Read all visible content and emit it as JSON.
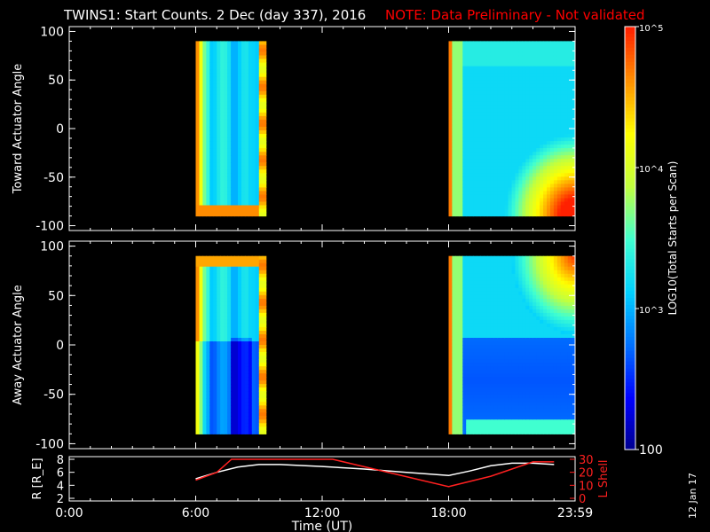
{
  "header": {
    "title": "TWINS1: Start Counts.  2 Dec (day 337), 2016",
    "note": "NOTE: Data Preliminary - Not validated"
  },
  "footer": {
    "date_stamp": "12 Jan 17"
  },
  "colors": {
    "background": "#000000",
    "axes": "#ffffff",
    "note": "#ff0000",
    "r_line": "#ffffff",
    "l_line": "#ff2020"
  },
  "colorbar": {
    "label": "LOG10(Total Starts per Scan)",
    "scale": "log",
    "range": [
      100,
      100000
    ],
    "ticks": [
      {
        "value": 100000,
        "label": "10^5"
      },
      {
        "value": 10000,
        "label": "10^4"
      },
      {
        "value": 1000,
        "label": "10^3"
      },
      {
        "value": 100,
        "label": "100"
      }
    ],
    "colormap": [
      "#00008b",
      "#0000ff",
      "#0070ff",
      "#00d0ff",
      "#40ffd0",
      "#c0ff40",
      "#ffff00",
      "#ff9000",
      "#ff2000"
    ]
  },
  "chart_data": [
    {
      "type": "heatmap",
      "panel": "toward",
      "ylabel": "Toward Actuator Angle",
      "xlim": [
        "00:00",
        "23:59"
      ],
      "ylim": [
        -105,
        105
      ],
      "yticks": [
        100,
        50,
        0,
        -50,
        -100
      ],
      "data_intervals": [
        {
          "start": "06:00",
          "end": "09:20",
          "count_level": "low-mid (~10^3)",
          "edge_level": "high (~10^4.7)"
        },
        {
          "start": "18:00",
          "end": "23:59",
          "count_level": "low (~10^2.7)",
          "edge_level": "high near -90 deg"
        }
      ],
      "angle_range": [
        -90,
        90
      ]
    },
    {
      "type": "heatmap",
      "panel": "away",
      "ylabel": "Away Actuator Angle",
      "xlim": [
        "00:00",
        "23:59"
      ],
      "ylim": [
        -105,
        105
      ],
      "yticks": [
        100,
        50,
        0,
        -50,
        -100
      ],
      "data_intervals": [
        {
          "start": "06:00",
          "end": "09:20",
          "count_level": "low (~10^2.5) below 0 deg",
          "edge_level": "high (~10^4.7)"
        },
        {
          "start": "18:00",
          "end": "23:59",
          "count_level": "low (~10^2.3) below 0 deg",
          "edge_level": "high near +90 deg"
        }
      ],
      "angle_range": [
        -90,
        90
      ]
    },
    {
      "type": "line",
      "panel": "orbit",
      "xlabel": "Time (UT)",
      "xticks": [
        "0:00",
        "6:00",
        "12:00",
        "18:00",
        "23:59"
      ],
      "ylabel_left": "R [R_E]",
      "ylim_left": [
        2,
        8
      ],
      "yticks_left": [
        2,
        4,
        6,
        8
      ],
      "ylabel_right": "L Shell",
      "ylim_right": [
        0,
        30
      ],
      "yticks_right": [
        0,
        10,
        20,
        30
      ],
      "series": [
        {
          "name": "R [R_E]",
          "axis": "left",
          "x": [
            6,
            7,
            8,
            9,
            10,
            12,
            14,
            16,
            18,
            19,
            20,
            21,
            22,
            23
          ],
          "y": [
            5.0,
            6.0,
            6.8,
            7.2,
            7.2,
            6.9,
            6.5,
            6.0,
            5.5,
            6.2,
            7.0,
            7.4,
            7.4,
            7.2
          ]
        },
        {
          "name": "L Shell",
          "axis": "right",
          "x": [
            6,
            7,
            7.7,
            12.5,
            18,
            20,
            22,
            23
          ],
          "y": [
            14,
            20,
            30,
            30,
            9,
            17,
            28,
            28
          ]
        }
      ]
    }
  ]
}
